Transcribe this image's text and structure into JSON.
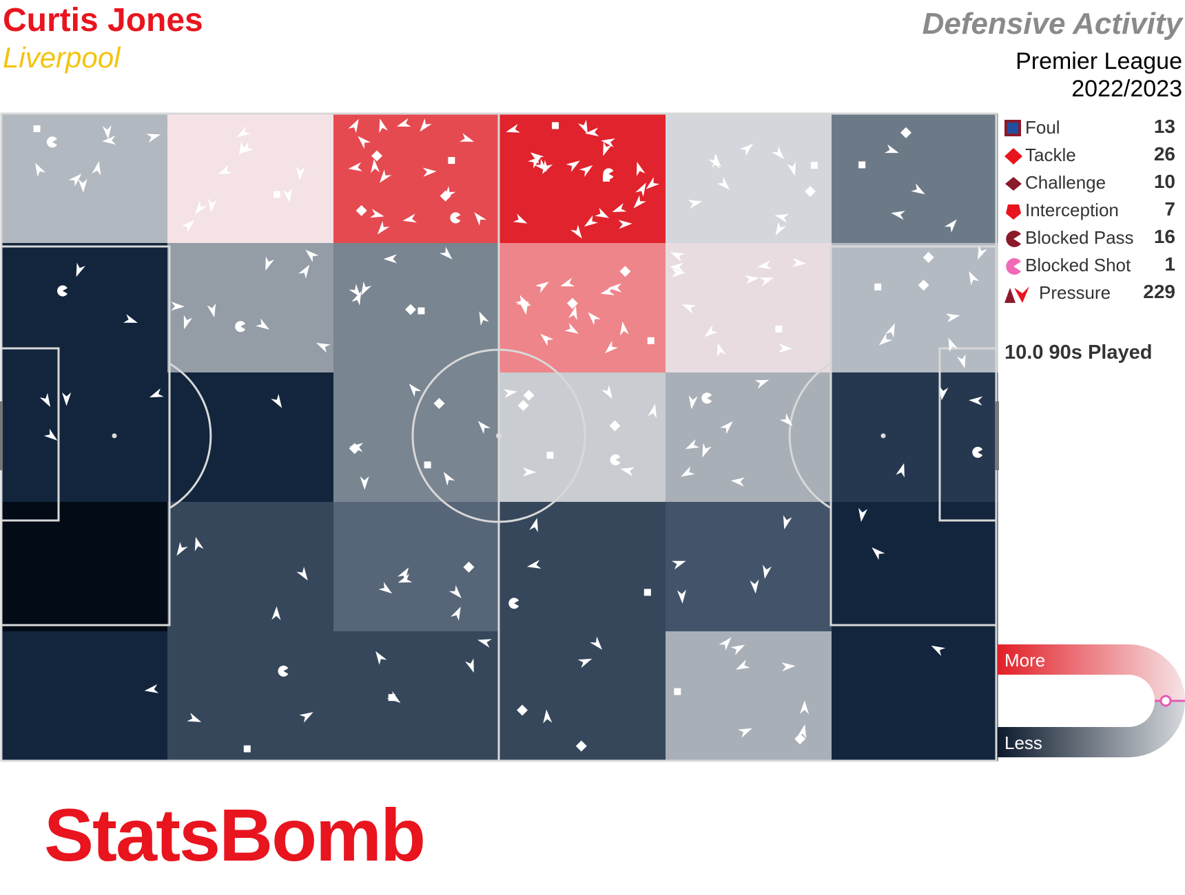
{
  "header": {
    "player": "Curtis Jones",
    "team": "Liverpool",
    "title": "Defensive Activity",
    "league": "Premier League",
    "season": "2022/2023"
  },
  "legend": [
    {
      "label": "Foul",
      "value": "13",
      "icon": "foul-square-icon"
    },
    {
      "label": "Tackle",
      "value": "26",
      "icon": "tackle-diamond-icon"
    },
    {
      "label": "Challenge",
      "value": "10",
      "icon": "challenge-diamond-icon"
    },
    {
      "label": "Interception",
      "value": "7",
      "icon": "interception-pentagon-icon"
    },
    {
      "label": "Blocked Pass",
      "value": "16",
      "icon": "blocked-pass-pacman-icon"
    },
    {
      "label": "Blocked Shot",
      "value": "1",
      "icon": "blocked-shot-pacman-icon"
    },
    {
      "label": "Pressure",
      "value": "229",
      "icon": "pressure-triangle-icon"
    }
  ],
  "nineties_played": "10.0 90s Played",
  "scale": {
    "more_label": "More",
    "less_label": "Less"
  },
  "logo_text": "StatsBomb",
  "colors": {
    "accent": "#e8141e",
    "team_color": "#f2c40f",
    "title_grey": "#8a8a8a",
    "heat_high": "#e21f27",
    "heat_low": "#020b16"
  },
  "chart_data": {
    "type": "heatmap",
    "title": "Defensive Activity",
    "grid": {
      "columns": 6,
      "rows": 5
    },
    "cell_colors": [
      [
        "#b2b8bf",
        "#f4e2e4",
        "#e54a51",
        "#e0232c",
        "#d3d6db",
        "#6c7a88"
      ],
      [
        "#13253d",
        "#949ca6",
        "#798591",
        "#ee858a",
        "#e8dce0",
        "#b4bac2"
      ],
      [
        "#13253d",
        "#13253d",
        "#798591",
        "#c9ccd0",
        "#a9afb7",
        "#263850"
      ],
      [
        "#020b16",
        "#36475b",
        "#576578",
        "#36475b",
        "#43546a",
        "#13253d"
      ],
      [
        "#13253d",
        "#36475b",
        "#36475b",
        "#36475b",
        "#a9afb7",
        "#13253d"
      ]
    ],
    "event_counts": {
      "Foul": 13,
      "Tackle": 26,
      "Challenge": 10,
      "Interception": 7,
      "Blocked Pass": 16,
      "Blocked Shot": 1,
      "Pressure": 229
    }
  }
}
